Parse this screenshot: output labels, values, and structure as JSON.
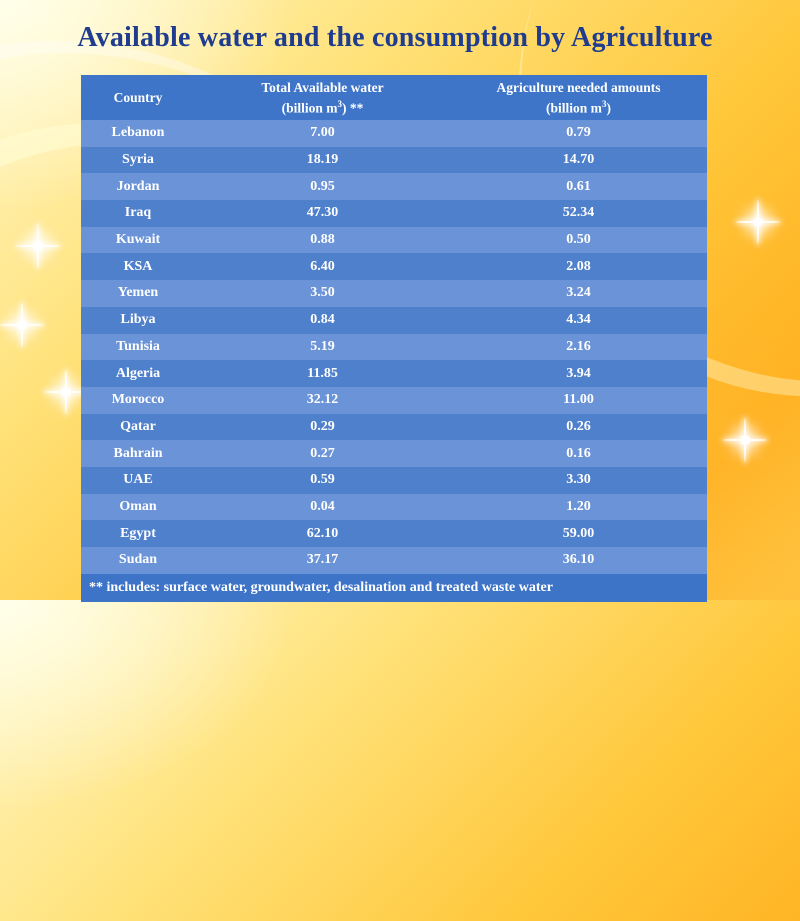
{
  "title": "Available water and the consumption  by Agriculture",
  "table": {
    "headers": {
      "country": "Country",
      "total_line1": "Total Available water",
      "total_line2_pre": "(billion m",
      "total_line2_sup": "3",
      "total_line2_post": ") **",
      "agri_line1": "Agriculture needed amounts",
      "agri_line2_pre": "(billion m",
      "agri_line2_sup": "3",
      "agri_line2_post": ")"
    },
    "rows": [
      {
        "country": "Lebanon",
        "total": "7.00",
        "agri": "0.79"
      },
      {
        "country": "Syria",
        "total": "18.19",
        "agri": "14.70"
      },
      {
        "country": "Jordan",
        "total": "0.95",
        "agri": "0.61"
      },
      {
        "country": "Iraq",
        "total": "47.30",
        "agri": "52.34"
      },
      {
        "country": "Kuwait",
        "total": "0.88",
        "agri": "0.50"
      },
      {
        "country": "KSA",
        "total": "6.40",
        "agri": "2.08"
      },
      {
        "country": "Yemen",
        "total": "3.50",
        "agri": "3.24"
      },
      {
        "country": "Libya",
        "total": "0.84",
        "agri": "4.34"
      },
      {
        "country": "Tunisia",
        "total": "5.19",
        "agri": "2.16"
      },
      {
        "country": "Algeria",
        "total": "11.85",
        "agri": "3.94"
      },
      {
        "country": "Morocco",
        "total": "32.12",
        "agri": "11.00"
      },
      {
        "country": "Qatar",
        "total": "0.29",
        "agri": "0.26"
      },
      {
        "country": "Bahrain",
        "total": "0.27",
        "agri": "0.16"
      },
      {
        "country": "UAE",
        "total": "0.59",
        "agri": "3.30"
      },
      {
        "country": "Oman",
        "total": "0.04",
        "agri": "1.20"
      },
      {
        "country": "Egypt",
        "total": "62.10",
        "agri": "59.00"
      },
      {
        "country": "Sudan",
        "total": "37.17",
        "agri": "36.10"
      }
    ],
    "footnote": "** includes: surface water, groundwater, desalination and treated waste water"
  },
  "colors": {
    "title": "#1f3c8f",
    "header_bg": "#3e75c8",
    "row_light": "#6a93d8",
    "row_dark": "#4f80cc"
  }
}
